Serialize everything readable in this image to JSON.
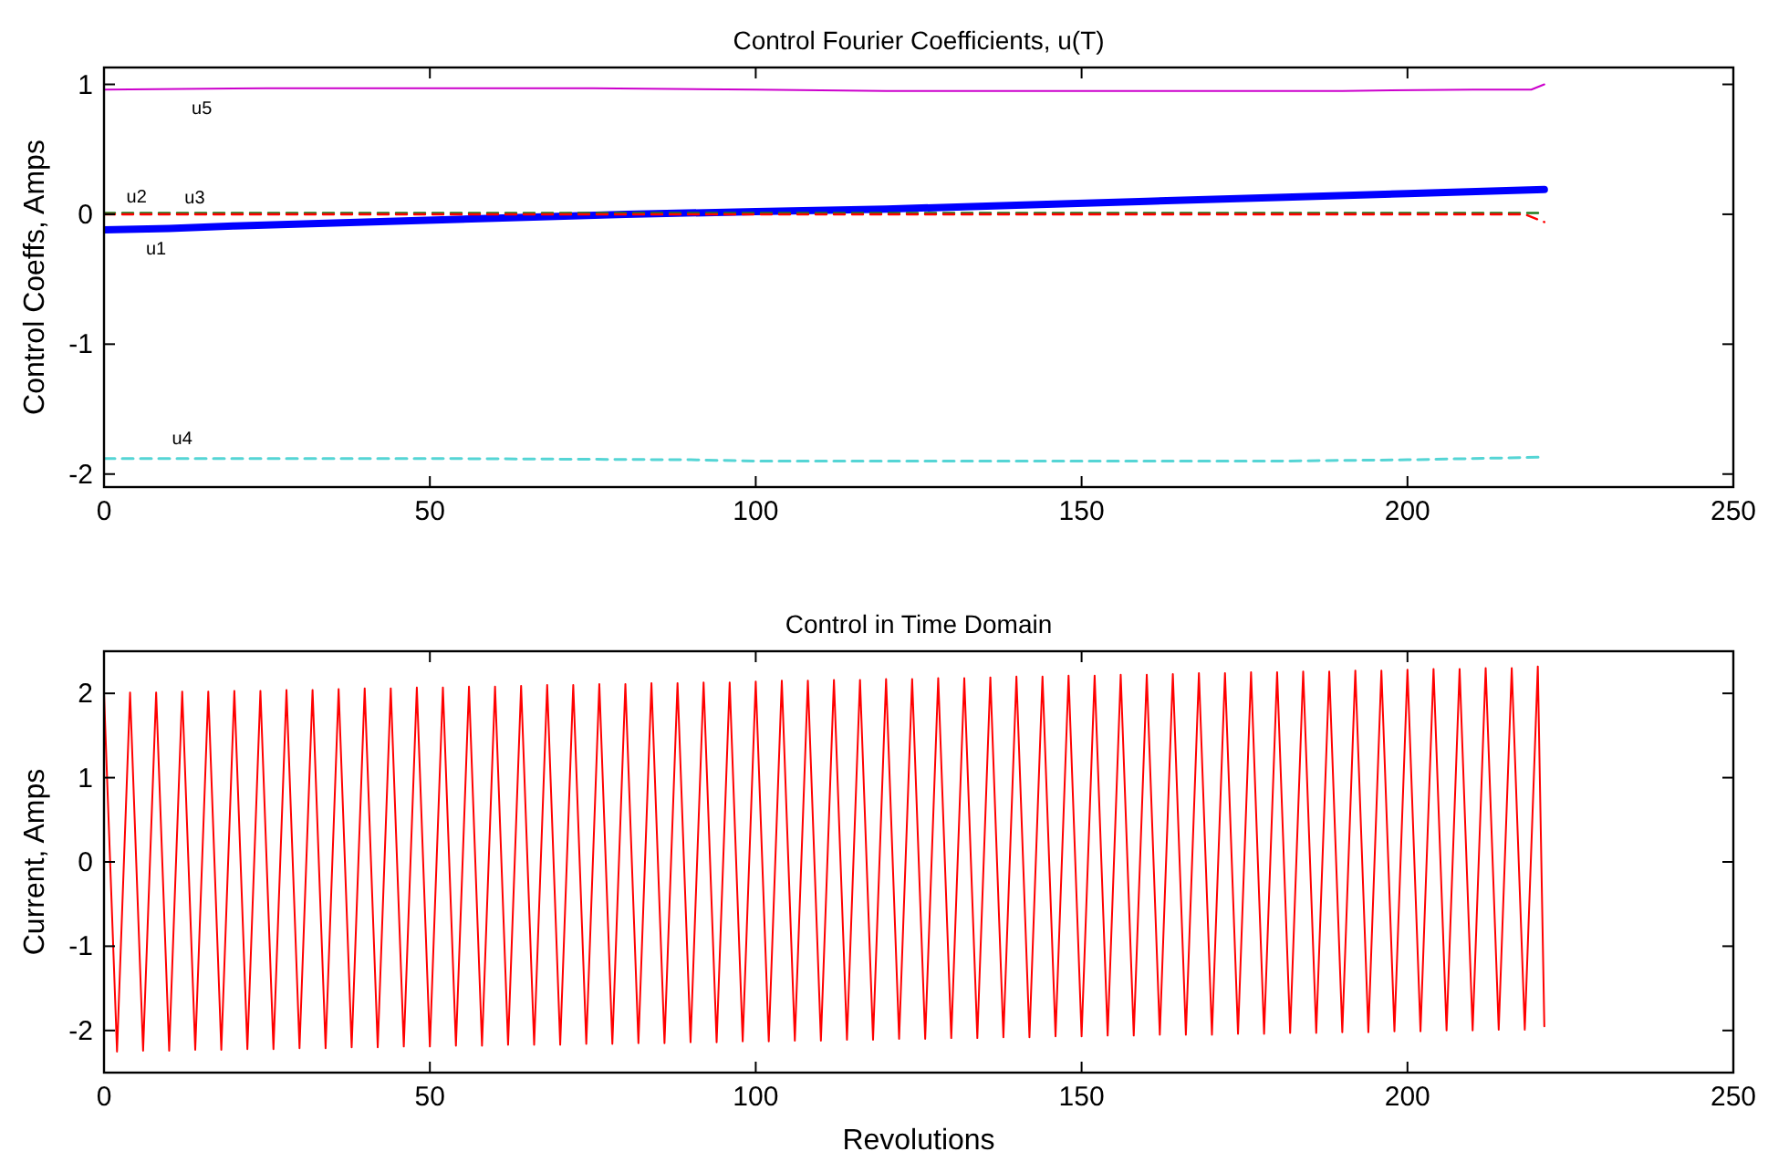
{
  "chart_data": [
    {
      "type": "line",
      "title": "Control Fourier Coefficients, u(T)",
      "ylabel": "Control Coeffs, Amps",
      "xlim": [
        0,
        250
      ],
      "ylim": [
        -2.1,
        1.13
      ],
      "xticks": [
        0,
        50,
        100,
        150,
        200,
        250
      ],
      "yticks": [
        -2,
        -1,
        0,
        1
      ],
      "series": [
        {
          "name": "u1",
          "color": "#0000ff",
          "line_style": "solid",
          "x": [
            0,
            10,
            20,
            40,
            60,
            80,
            100,
            120,
            140,
            160,
            180,
            200,
            221
          ],
          "values": [
            -0.12,
            -0.11,
            -0.09,
            -0.06,
            -0.03,
            0.0,
            0.02,
            0.04,
            0.07,
            0.1,
            0.13,
            0.16,
            0.19
          ]
        },
        {
          "name": "u2",
          "color": "#1f7a1f",
          "line_style": "dashed",
          "x": [
            0,
            50,
            100,
            150,
            200,
            221
          ],
          "values": [
            0.01,
            0.01,
            0.01,
            0.01,
            0.01,
            0.01
          ]
        },
        {
          "name": "u3",
          "color": "#ff0000",
          "line_style": "dashed",
          "x": [
            0,
            50,
            100,
            150,
            200,
            218,
            221
          ],
          "values": [
            0.0,
            0.0,
            0.0,
            0.0,
            0.0,
            0.0,
            -0.06
          ]
        },
        {
          "name": "u4",
          "color": "#55d5d5",
          "line_style": "dashed",
          "x": [
            0,
            50,
            90,
            100,
            150,
            180,
            200,
            221
          ],
          "values": [
            -1.88,
            -1.88,
            -1.89,
            -1.9,
            -1.9,
            -1.9,
            -1.89,
            -1.87
          ]
        },
        {
          "name": "u5",
          "color": "#cc00cc",
          "line_style": "solid",
          "x": [
            0,
            25,
            50,
            75,
            100,
            120,
            150,
            190,
            210,
            219,
            221
          ],
          "values": [
            0.96,
            0.97,
            0.97,
            0.97,
            0.96,
            0.95,
            0.95,
            0.95,
            0.96,
            0.96,
            1.0
          ]
        }
      ]
    },
    {
      "type": "line",
      "title": "Control in Time Domain",
      "xlabel": "Revolutions",
      "ylabel": "Current, Amps",
      "xlim": [
        0,
        250
      ],
      "ylim": [
        -2.5,
        2.5
      ],
      "xticks": [
        0,
        50,
        100,
        150,
        200,
        250
      ],
      "yticks": [
        -2,
        -1,
        0,
        1,
        2
      ],
      "series": [
        {
          "color": "#ff0000",
          "line_style": "solid",
          "x": [
            0,
            2,
            4,
            6,
            8,
            10,
            12,
            14,
            16,
            18,
            20,
            22,
            24,
            26,
            28,
            30,
            32,
            34,
            36,
            38,
            40,
            42,
            44,
            46,
            48,
            50,
            52,
            54,
            56,
            58,
            60,
            62,
            64,
            66,
            68,
            70,
            72,
            74,
            76,
            78,
            80,
            82,
            84,
            86,
            88,
            90,
            92,
            94,
            96,
            98,
            100,
            102,
            104,
            106,
            108,
            110,
            112,
            114,
            116,
            118,
            120,
            122,
            124,
            126,
            128,
            130,
            132,
            134,
            136,
            138,
            140,
            142,
            144,
            146,
            148,
            150,
            152,
            154,
            156,
            158,
            160,
            162,
            164,
            166,
            168,
            170,
            172,
            174,
            176,
            178,
            180,
            182,
            184,
            186,
            188,
            190,
            192,
            194,
            196,
            198,
            200,
            202,
            204,
            206,
            208,
            210,
            212,
            214,
            216,
            218,
            220,
            221
          ],
          "values": [
            2.0,
            -2.25,
            2.01,
            -2.24,
            2.01,
            -2.24,
            2.02,
            -2.23,
            2.02,
            -2.23,
            2.03,
            -2.22,
            2.03,
            -2.22,
            2.04,
            -2.21,
            2.04,
            -2.21,
            2.05,
            -2.2,
            2.06,
            -2.2,
            2.06,
            -2.19,
            2.07,
            -2.19,
            2.07,
            -2.18,
            2.08,
            -2.18,
            2.08,
            -2.17,
            2.09,
            -2.17,
            2.1,
            -2.17,
            2.1,
            -2.16,
            2.11,
            -2.16,
            2.11,
            -2.15,
            2.12,
            -2.15,
            2.12,
            -2.14,
            2.13,
            -2.14,
            2.13,
            -2.13,
            2.14,
            -2.13,
            2.15,
            -2.12,
            2.15,
            -2.12,
            2.16,
            -2.11,
            2.16,
            -2.11,
            2.17,
            -2.1,
            2.17,
            -2.1,
            2.18,
            -2.09,
            2.18,
            -2.09,
            2.19,
            -2.08,
            2.2,
            -2.08,
            2.2,
            -2.07,
            2.21,
            -2.07,
            2.21,
            -2.06,
            2.22,
            -2.06,
            2.22,
            -2.05,
            2.23,
            -2.05,
            2.24,
            -2.05,
            2.24,
            -2.04,
            2.25,
            -2.04,
            2.25,
            -2.03,
            2.26,
            -2.03,
            2.26,
            -2.02,
            2.27,
            -2.02,
            2.27,
            -2.01,
            2.28,
            -2.01,
            2.29,
            -2.0,
            2.29,
            -2.0,
            2.3,
            -1.99,
            2.3,
            -1.99,
            2.32,
            -1.95
          ]
        }
      ]
    }
  ]
}
